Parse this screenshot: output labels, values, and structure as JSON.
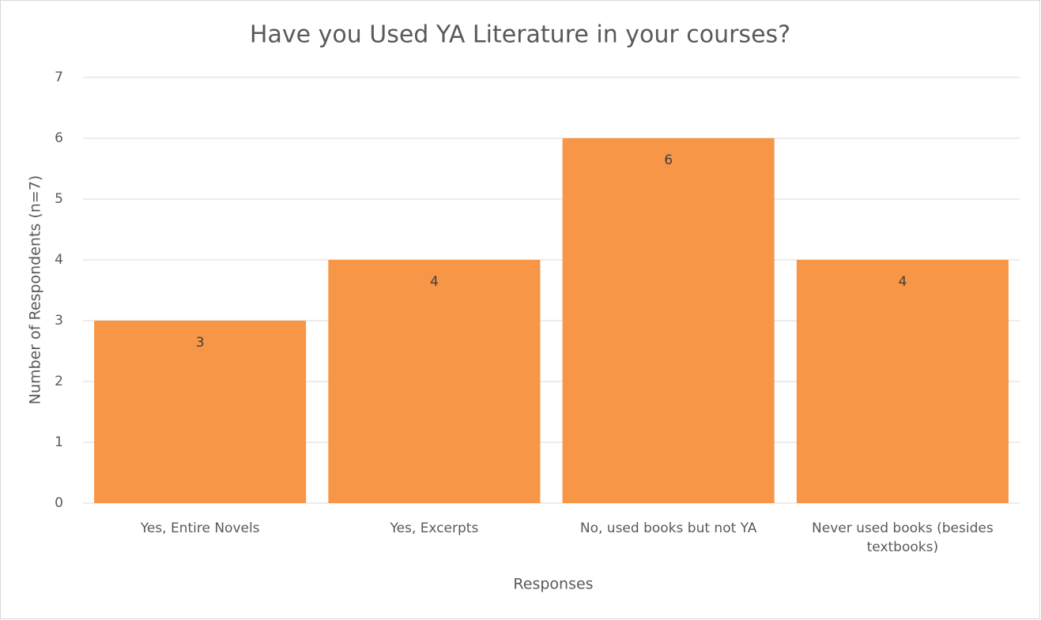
{
  "chart_data": {
    "type": "bar",
    "title": "Have you Used YA Literature in your courses?",
    "categories": [
      "Yes, Entire Novels",
      "Yes, Excerpts",
      "No, used books but not YA",
      "Never used books (besides textbooks)"
    ],
    "values": [
      3,
      4,
      6,
      4
    ],
    "color": "#f79646",
    "xlabel": "Responses",
    "ylabel": "Number of Respondents (n=7)",
    "ylim": [
      0,
      7
    ],
    "yticks": [
      0,
      1,
      2,
      3,
      4,
      5,
      6,
      7
    ],
    "grid": true
  }
}
